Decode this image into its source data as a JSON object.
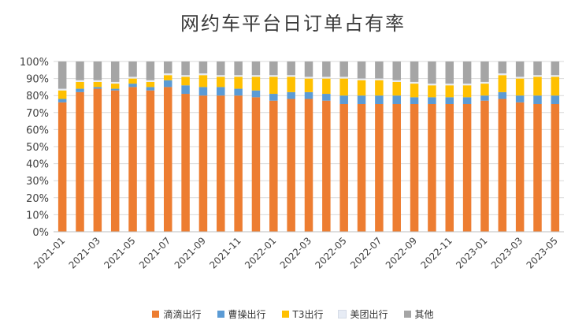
{
  "chart_data": {
    "type": "bar",
    "stacked": true,
    "title": "网约车平台日订单占有率",
    "xlabel": "",
    "ylabel": "",
    "ylim": [
      0,
      100
    ],
    "grid": true,
    "legend_position": "bottom",
    "y_ticks": [
      "0%",
      "10%",
      "20%",
      "30%",
      "40%",
      "50%",
      "60%",
      "70%",
      "80%",
      "90%",
      "100%"
    ],
    "categories": [
      "2021-01",
      "2021-02",
      "2021-03",
      "2021-04",
      "2021-05",
      "2021-06",
      "2021-07",
      "2021-08",
      "2021-09",
      "2021-10",
      "2021-11",
      "2021-12",
      "2022-01",
      "2022-02",
      "2022-03",
      "2022-04",
      "2022-05",
      "2022-06",
      "2022-07",
      "2022-08",
      "2022-09",
      "2022-10",
      "2022-11",
      "2022-12",
      "2023-01",
      "2023-02",
      "2023-03",
      "2023-04",
      "2023-05"
    ],
    "x_tick_labels": [
      "2021-01",
      "2021-03",
      "2021-05",
      "2021-07",
      "2021-09",
      "2021-11",
      "2022-01",
      "2022-03",
      "2022-05",
      "2022-07",
      "2022-09",
      "2022-11",
      "2023-01",
      "2023-03",
      "2023-05"
    ],
    "series": [
      {
        "name": "滴滴出行",
        "color": "#ED7D31",
        "values": [
          76,
          82,
          84,
          83,
          85,
          83,
          85,
          81,
          80,
          80,
          80,
          79,
          77,
          78,
          78,
          77,
          75,
          75,
          75,
          75,
          75,
          75,
          75,
          75,
          77,
          78,
          76,
          75,
          75
        ]
      },
      {
        "name": "曹操出行",
        "color": "#5B9BD5",
        "values": [
          2,
          2,
          1,
          1,
          2,
          2,
          4,
          5,
          5,
          5,
          4,
          4,
          4,
          4,
          4,
          4,
          5,
          5,
          5,
          5,
          4,
          4,
          4,
          4,
          3,
          4,
          4,
          5,
          5
        ]
      },
      {
        "name": "T3出行",
        "color": "#FFC000",
        "values": [
          5,
          4,
          3,
          3,
          3,
          3,
          3,
          5,
          7,
          6,
          7,
          8,
          10,
          9,
          8,
          9,
          10,
          9,
          9,
          8,
          8,
          7,
          7,
          7,
          7,
          10,
          10,
          11,
          11
        ]
      },
      {
        "name": "美团出行",
        "color": "#E7ECF5",
        "values": [
          1,
          1,
          1,
          1,
          1,
          1,
          1,
          1,
          1,
          1,
          1,
          1,
          1,
          1,
          1,
          1,
          1,
          1,
          1,
          1,
          1,
          1,
          1,
          1,
          1,
          1,
          1,
          1,
          1
        ]
      },
      {
        "name": "其他",
        "color": "#A5A5A5",
        "values": [
          16,
          11,
          11,
          12,
          9,
          11,
          7,
          8,
          7,
          8,
          8,
          8,
          8,
          8,
          9,
          9,
          9,
          10,
          10,
          11,
          12,
          13,
          13,
          13,
          12,
          7,
          9,
          8,
          8
        ]
      }
    ]
  }
}
